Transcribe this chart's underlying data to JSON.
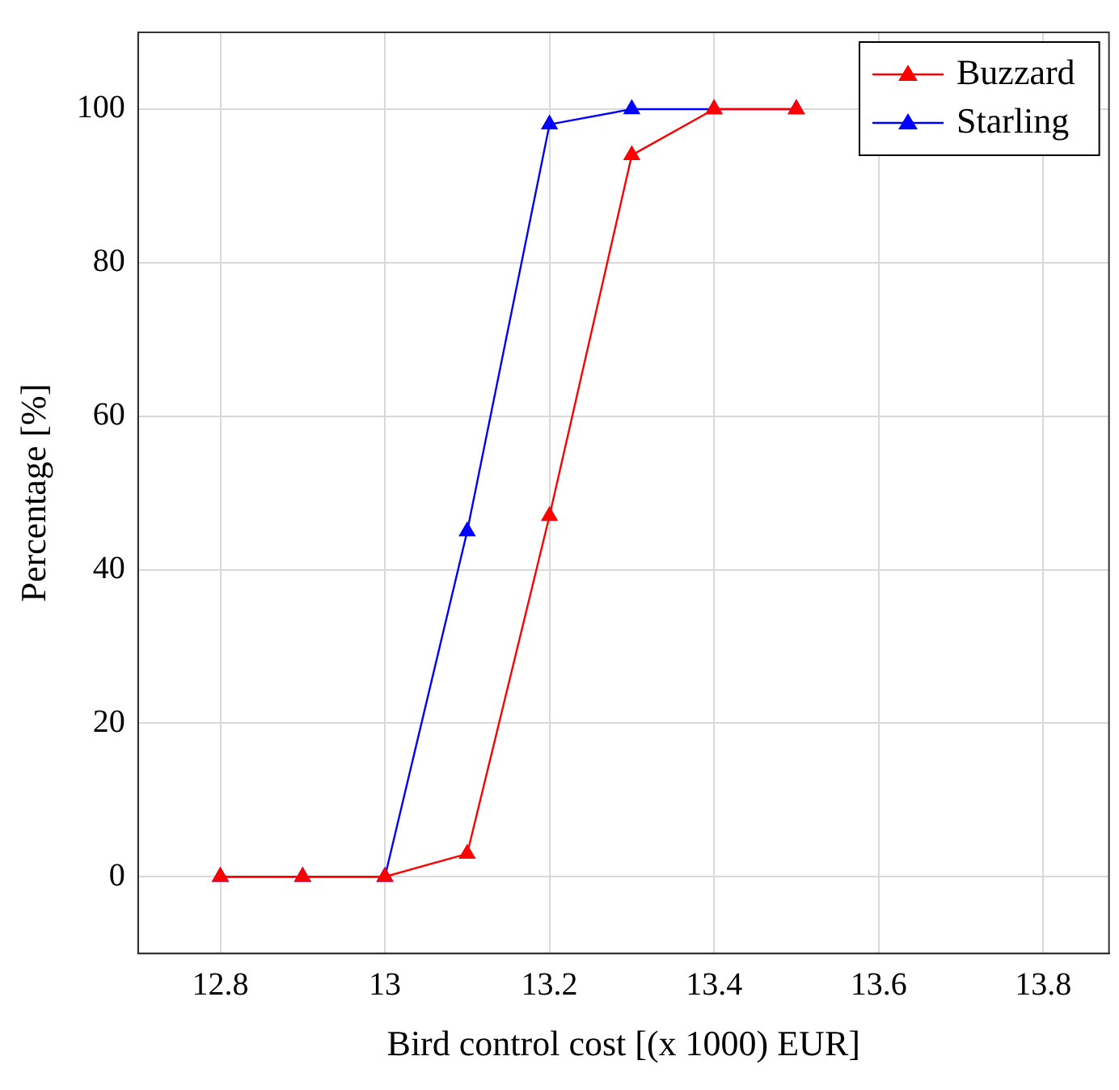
{
  "chart_data": {
    "type": "line",
    "xlabel": "Bird control cost [(x 1000) EUR]",
    "ylabel": "Percentage [%]",
    "x": [
      12.8,
      12.9,
      13,
      13.1,
      13.2,
      13.3,
      13.4,
      13.5
    ],
    "series": [
      {
        "name": "Buzzard",
        "color": "#ff0000",
        "values": [
          0,
          0,
          0,
          3,
          47,
          94,
          100,
          100
        ]
      },
      {
        "name": "Starling",
        "color": "#0000ff",
        "values": [
          0,
          0,
          0,
          45,
          98,
          100,
          100,
          100
        ]
      }
    ],
    "xlim": [
      12.7,
      13.88
    ],
    "xticks": [
      12.8,
      13,
      13.2,
      13.4,
      13.6,
      13.8
    ],
    "ylim": [
      -10,
      110
    ],
    "yticks": [
      0,
      20,
      40,
      60,
      80,
      100
    ],
    "grid": true,
    "legend": "top right",
    "marker": "triangle",
    "line_style": "solid"
  }
}
